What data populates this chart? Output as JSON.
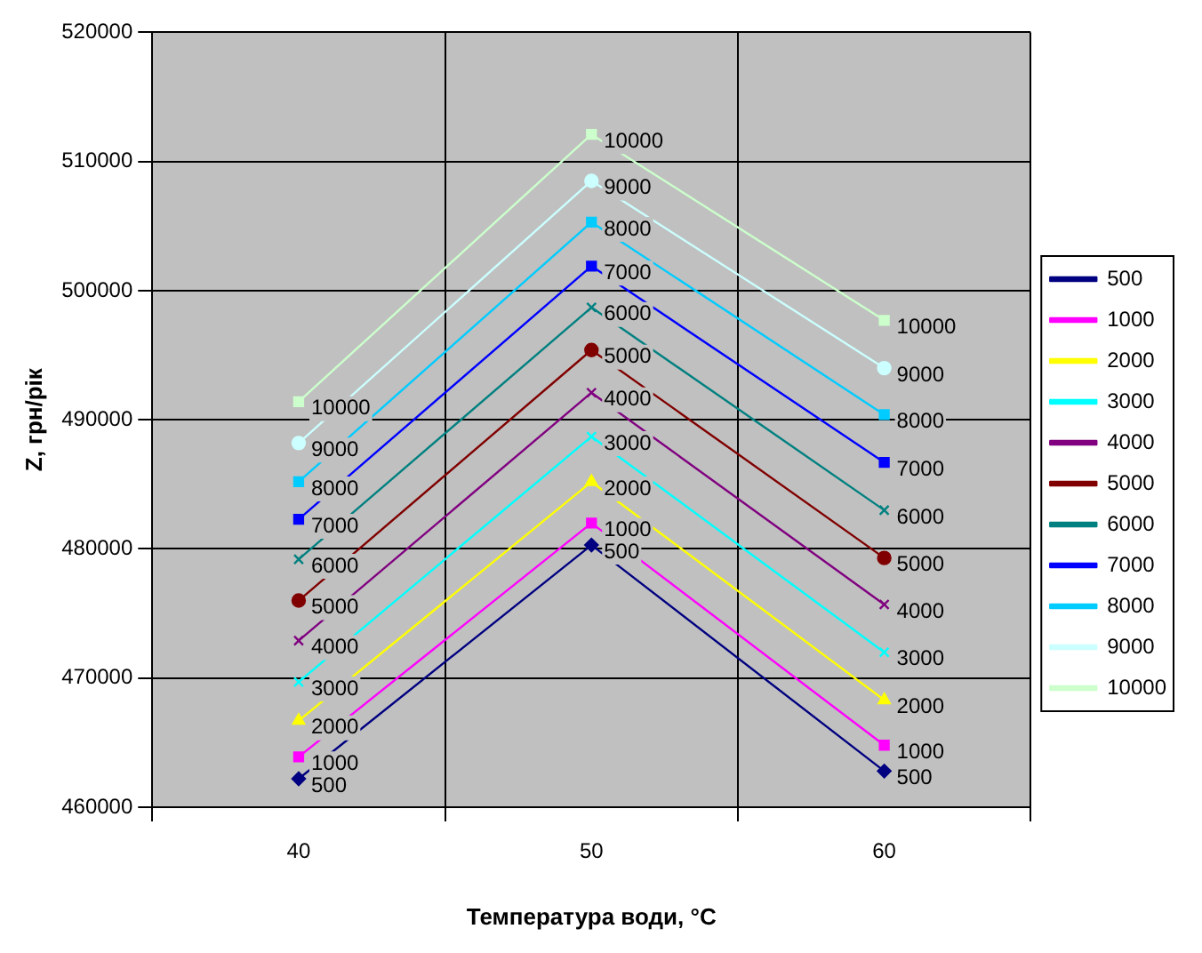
{
  "chart_data": {
    "type": "line",
    "xlabel": "Температура води, °C",
    "ylabel": "Z, грн/рік",
    "categories": [
      "40",
      "50",
      "60"
    ],
    "ylim": [
      460000,
      520000
    ],
    "yticks": [
      460000,
      470000,
      480000,
      490000,
      500000,
      510000,
      520000
    ],
    "grid": true,
    "legend": "right",
    "series": [
      {
        "name": "500",
        "color": "#000080",
        "marker": "diamond",
        "values": [
          462200,
          480300,
          462800
        ]
      },
      {
        "name": "1000",
        "color": "#ff00ff",
        "marker": "square",
        "values": [
          463900,
          482000,
          464800
        ]
      },
      {
        "name": "2000",
        "color": "#ffff00",
        "marker": "triangle",
        "values": [
          466700,
          485200,
          468300
        ]
      },
      {
        "name": "3000",
        "color": "#00ffff",
        "marker": "cross",
        "values": [
          469700,
          488700,
          472000
        ]
      },
      {
        "name": "4000",
        "color": "#800080",
        "marker": "cross",
        "values": [
          472900,
          492100,
          475700
        ]
      },
      {
        "name": "5000",
        "color": "#800000",
        "marker": "circle",
        "values": [
          476000,
          495400,
          479300
        ]
      },
      {
        "name": "6000",
        "color": "#008080",
        "marker": "cross",
        "values": [
          479200,
          498700,
          483000
        ]
      },
      {
        "name": "7000",
        "color": "#0000ff",
        "marker": "square",
        "values": [
          482300,
          501900,
          486700
        ]
      },
      {
        "name": "8000",
        "color": "#00ccff",
        "marker": "square",
        "values": [
          485200,
          505300,
          490400
        ]
      },
      {
        "name": "9000",
        "color": "#ccffff",
        "marker": "circle",
        "values": [
          488200,
          508500,
          494000
        ]
      },
      {
        "name": "10000",
        "color": "#ccffcc",
        "marker": "square",
        "values": [
          491400,
          512100,
          497700
        ]
      }
    ]
  }
}
